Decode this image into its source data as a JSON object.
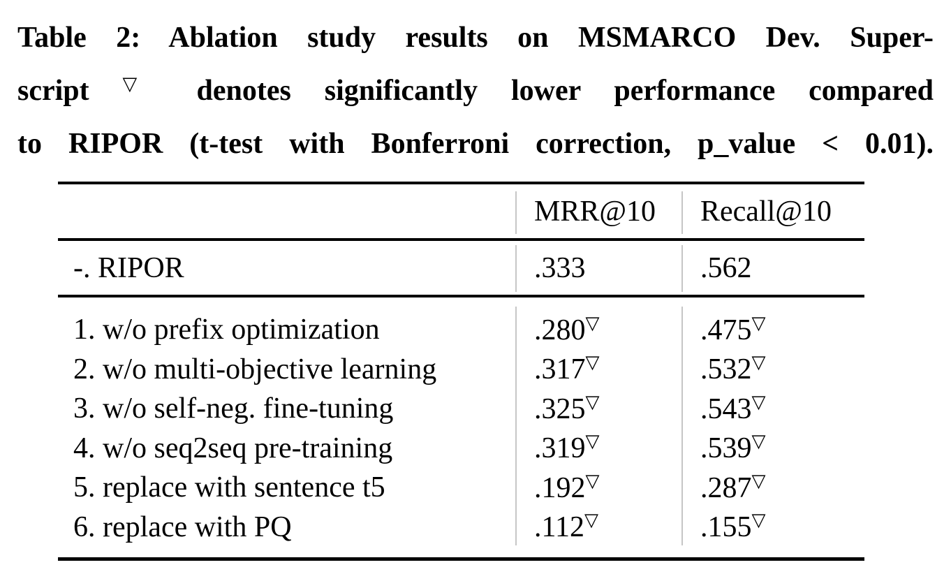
{
  "caption": {
    "lines": [
      {
        "pre": "Table 2: Ablation study results on MSMARCO Dev. Super-",
        "sup": "",
        "post": ""
      },
      {
        "pre": "script ",
        "sup": "▽",
        "post": " denotes significantly lower performance compared"
      },
      {
        "pre": "to RIPOR (t-test with Bonferroni correction, p_value < 0.01).",
        "sup": "",
        "post": ""
      }
    ]
  },
  "table": {
    "columns": [
      "MRR@10",
      "Recall@10"
    ],
    "baseline_row": {
      "label": "-. RIPOR",
      "mrr": ".333",
      "mrr_sup": "",
      "recall": ".562",
      "recall_sup": ""
    },
    "rows": [
      {
        "label": "1. w/o prefix optimization",
        "mrr": ".280",
        "mrr_sup": "▽",
        "recall": ".475",
        "recall_sup": "▽"
      },
      {
        "label": "2. w/o multi-objective learning",
        "mrr": ".317",
        "mrr_sup": "▽",
        "recall": ".532",
        "recall_sup": "▽"
      },
      {
        "label": "3. w/o self-neg. fine-tuning",
        "mrr": ".325",
        "mrr_sup": "▽",
        "recall": ".543",
        "recall_sup": "▽"
      },
      {
        "label": "4. w/o seq2seq pre-training",
        "mrr": ".319",
        "mrr_sup": "▽",
        "recall": ".539",
        "recall_sup": "▽"
      },
      {
        "label": "5. replace with sentence t5",
        "mrr": ".192",
        "mrr_sup": "▽",
        "recall": ".287",
        "recall_sup": "▽"
      },
      {
        "label": "6. replace with PQ",
        "mrr": ".112",
        "mrr_sup": "▽",
        "recall": ".155",
        "recall_sup": "▽"
      }
    ],
    "significance_marker": "▽",
    "colors": {
      "text": "#000000",
      "rule": "#000000",
      "divider": "#c6c6c6",
      "background": "#ffffff"
    }
  }
}
